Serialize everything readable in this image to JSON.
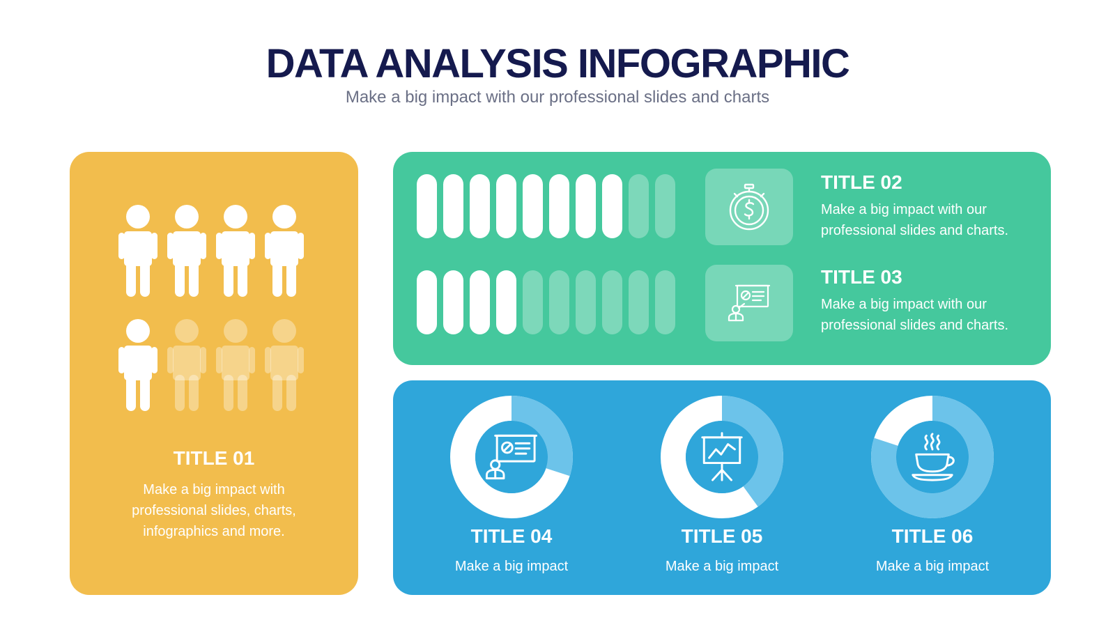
{
  "header": {
    "title": "DATA ANALYSIS INFOGRAPHIC",
    "subtitle": "Make a big impact with our professional slides and charts"
  },
  "colors": {
    "navy": "#151a4e",
    "yellow": "#f2bd4d",
    "green": "#45c89d",
    "blue": "#2fa6da",
    "white": "#ffffff"
  },
  "people_card": {
    "title": "TITLE 01",
    "description": "Make a big impact with professional slides, charts, infographics and more.",
    "total": 8,
    "highlighted": 5,
    "icon": "person-icon"
  },
  "bar_items": [
    {
      "title": "TITLE 02",
      "description": "Make a big impact with our professional slides and charts.",
      "total": 10,
      "filled": 8,
      "icon": "stopwatch-dollar-icon"
    },
    {
      "title": "TITLE 03",
      "description": "Make a big impact with our professional slides and charts.",
      "total": 10,
      "filled": 4,
      "icon": "presentation-icon"
    }
  ],
  "donut_items": [
    {
      "title": "TITLE 04",
      "description": "Make a big impact",
      "percent": 30,
      "icon": "presentation-icon"
    },
    {
      "title": "TITLE 05",
      "description": "Make a big impact",
      "percent": 40,
      "icon": "chart-easel-icon"
    },
    {
      "title": "TITLE 06",
      "description": "Make a big impact",
      "percent": 80,
      "icon": "coffee-cup-icon"
    }
  ]
}
